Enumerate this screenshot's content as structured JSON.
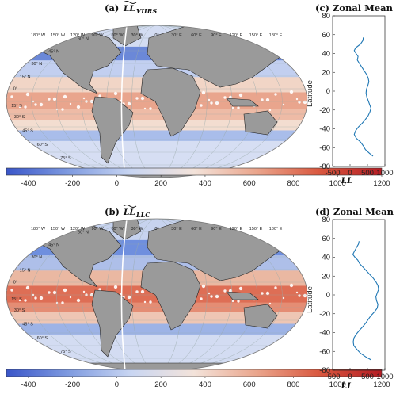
{
  "panels": {
    "a": {
      "label": "(a)",
      "symbol": "LL",
      "subscript": "VIIRS"
    },
    "b": {
      "label": "(b)",
      "symbol": "LL",
      "subscript": "LLC"
    },
    "c": {
      "title": "(c) Zonal Mean",
      "ylabel": "Latitude",
      "xlabel": "LL"
    },
    "d": {
      "title": "(d) Zonal Mean",
      "ylabel": "Latitude",
      "xlabel": "LL"
    }
  },
  "map_labels": {
    "lon": [
      "180° W",
      "150° W",
      "120° W",
      "90° W",
      "60° W",
      "30° W",
      "0°",
      "30° E",
      "60° E",
      "90° E",
      "120° E",
      "150° E",
      "180° E"
    ],
    "lat": [
      "60° N",
      "45° N",
      "30° N",
      "15° N",
      "0°",
      "15° S",
      "30° S",
      "45° S",
      "60° S",
      "75° S"
    ]
  },
  "colorbar": {
    "ticks": [
      "-400",
      "-200",
      "0",
      "200",
      "400",
      "600",
      "800",
      "1000",
      "1200"
    ],
    "range": [
      -500,
      1200
    ],
    "colors": [
      "#3a56c9",
      "#7f9be0",
      "#c9d6f2",
      "#f3e3da",
      "#eaa58c",
      "#d9583f",
      "#b51d24"
    ]
  },
  "colors": {
    "land": "#9a9a9a",
    "line": "#1f77b4"
  },
  "chart_data": [
    {
      "type": "line",
      "title": "(c) Zonal Mean",
      "xlabel": "LL",
      "ylabel": "Latitude",
      "xlim": [
        -500,
        1000
      ],
      "ylim": [
        -80,
        80
      ],
      "xticks": [
        "-500",
        "0",
        "500",
        "1000"
      ],
      "yticks": [
        "-80",
        "-60",
        "-40",
        "-20",
        "0",
        "20",
        "40",
        "60",
        "80"
      ],
      "series": [
        {
          "lat": [
            57,
            54,
            50,
            46,
            43,
            40,
            37,
            33,
            30,
            26,
            22,
            18,
            14,
            10,
            6,
            2,
            -2,
            -6,
            -10,
            -14,
            -18,
            -22,
            -26,
            -30,
            -34,
            -38,
            -42,
            -46,
            -50,
            -54,
            -58,
            -62,
            -66,
            -69
          ],
          "values": [
            380,
            370,
            300,
            160,
            120,
            170,
            230,
            210,
            260,
            330,
            400,
            470,
            520,
            540,
            510,
            470,
            460,
            480,
            520,
            560,
            600,
            570,
            520,
            440,
            350,
            240,
            160,
            120,
            180,
            300,
            380,
            440,
            560,
            660
          ]
        }
      ]
    },
    {
      "type": "line",
      "title": "(d) Zonal Mean",
      "xlabel": "LL",
      "ylabel": "Latitude",
      "xlim": [
        -500,
        1000
      ],
      "ylim": [
        -80,
        80
      ],
      "xticks": [
        "-500",
        "0",
        "500",
        "1000"
      ],
      "yticks": [
        "-80",
        "-60",
        "-40",
        "-20",
        "0",
        "20",
        "40",
        "60",
        "80"
      ],
      "series": [
        {
          "lat": [
            57,
            54,
            50,
            46,
            43,
            40,
            37,
            33,
            30,
            26,
            22,
            18,
            14,
            10,
            6,
            2,
            -2,
            -6,
            -10,
            -14,
            -18,
            -22,
            -26,
            -30,
            -34,
            -38,
            -42,
            -46,
            -50,
            -54,
            -58,
            -62,
            -66,
            -69
          ],
          "values": [
            260,
            240,
            180,
            120,
            80,
            140,
            220,
            280,
            360,
            460,
            560,
            660,
            740,
            800,
            820,
            780,
            740,
            760,
            800,
            780,
            700,
            600,
            520,
            450,
            360,
            260,
            170,
            110,
            90,
            110,
            200,
            300,
            460,
            600
          ]
        }
      ]
    }
  ]
}
